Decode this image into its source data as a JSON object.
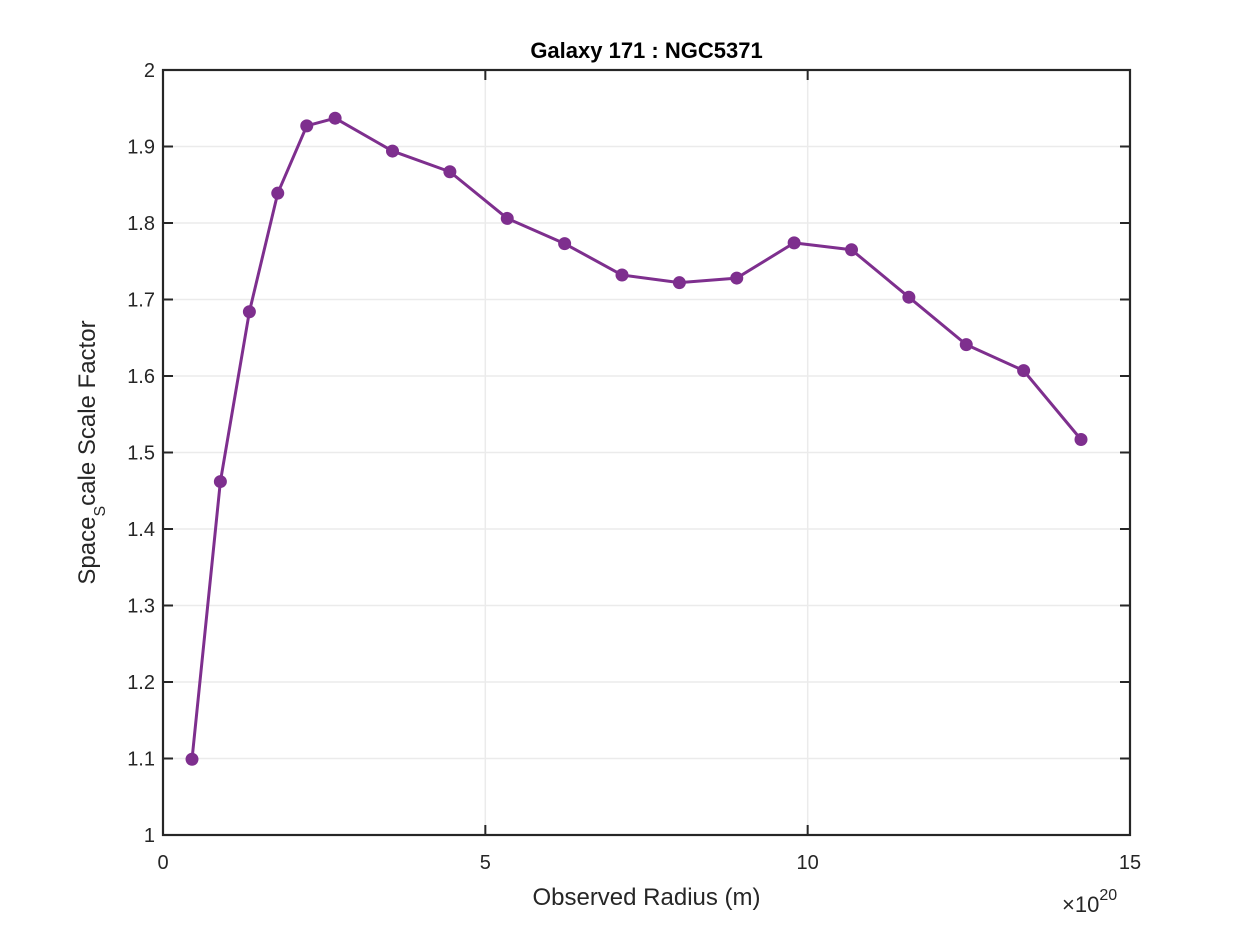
{
  "chart_data": {
    "type": "line",
    "title": "Galaxy 171 : NGC5371",
    "xlabel": "Observed Radius (m)",
    "ylabel": {
      "main": "Space",
      "subscript": "S",
      "rest": "cale Scale Factor"
    },
    "x_multiplier": {
      "base": "×10",
      "exponent": "20"
    },
    "xlim": [
      0,
      15
    ],
    "ylim": [
      1,
      2
    ],
    "xticks": [
      0,
      5,
      10,
      15
    ],
    "xtick_labels": [
      "0",
      "5",
      "10",
      "15"
    ],
    "yticks": [
      1,
      1.1,
      1.2,
      1.3,
      1.4,
      1.5,
      1.6,
      1.7,
      1.8,
      1.9,
      2
    ],
    "ytick_labels": [
      "1",
      "1.1",
      "1.2",
      "1.3",
      "1.4",
      "1.5",
      "1.6",
      "1.7",
      "1.8",
      "1.9",
      "2"
    ],
    "grid": true,
    "series": [
      {
        "color": "#7e2f8e",
        "marker": "circle",
        "x": [
          0.45,
          0.89,
          1.34,
          1.78,
          2.23,
          2.67,
          3.56,
          4.45,
          5.34,
          6.23,
          7.12,
          8.01,
          8.9,
          9.79,
          10.68,
          11.57,
          12.46,
          13.35,
          14.24
        ],
        "y": [
          1.099,
          1.462,
          1.684,
          1.839,
          1.927,
          1.937,
          1.894,
          1.867,
          1.806,
          1.773,
          1.732,
          1.722,
          1.728,
          1.774,
          1.765,
          1.703,
          1.641,
          1.607,
          1.517
        ]
      }
    ]
  }
}
